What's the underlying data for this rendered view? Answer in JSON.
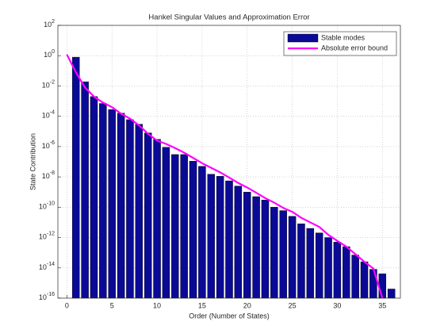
{
  "chart_data": {
    "type": "bar-line",
    "title": "Hankel Singular Values and Approximation Error",
    "xlabel": "Order (Number of States)",
    "ylabel": "State Contribution",
    "log_y": true,
    "grid": true,
    "legend": "northeast",
    "xlim": [
      -1,
      37
    ],
    "xticks": [
      0,
      5,
      10,
      15,
      20,
      25,
      30,
      35
    ],
    "ylim": [
      1e-16,
      100
    ],
    "yticks": [
      {
        "value": 100,
        "label": "10",
        "exponent": "2"
      },
      {
        "value": 1,
        "label": "10",
        "exponent": "0"
      },
      {
        "value": 0.01,
        "label": "10",
        "exponent": "-2"
      },
      {
        "value": 0.0001,
        "label": "10",
        "exponent": "-4"
      },
      {
        "value": 1e-06,
        "label": "10",
        "exponent": "-6"
      },
      {
        "value": 1e-08,
        "label": "10",
        "exponent": "-8"
      },
      {
        "value": 1e-10,
        "label": "10",
        "exponent": "-10"
      },
      {
        "value": 1e-12,
        "label": "10",
        "exponent": "-12"
      },
      {
        "value": 1e-14,
        "label": "10",
        "exponent": "-14"
      },
      {
        "value": 1e-16,
        "label": "10",
        "exponent": "-16"
      }
    ],
    "series": [
      {
        "name": "Stable modes",
        "kind": "bar",
        "color": "#0a0a96",
        "x": [
          1,
          2,
          3,
          4,
          5,
          6,
          7,
          8,
          9,
          10,
          11,
          12,
          13,
          14,
          15,
          16,
          17,
          18,
          19,
          20,
          21,
          22,
          23,
          24,
          25,
          26,
          27,
          28,
          29,
          30,
          31,
          32,
          33,
          34,
          35,
          36
        ],
        "values": [
          0.8,
          0.019,
          0.002,
          0.0007,
          0.00028,
          0.00016,
          6e-05,
          3e-05,
          8e-06,
          3e-06,
          9e-07,
          3e-07,
          3e-07,
          1.1e-07,
          5e-08,
          1.5e-08,
          1.1e-08,
          5.5e-09,
          2.5e-09,
          1e-09,
          5e-10,
          3e-10,
          1e-10,
          6e-11,
          2.5e-11,
          8e-12,
          4e-12,
          2e-12,
          1e-12,
          5e-13,
          2.5e-13,
          7e-14,
          2.5e-14,
          8e-15,
          4e-15,
          4e-16
        ]
      },
      {
        "name": "Absolute error bound",
        "kind": "line",
        "color": "#ff00ff",
        "x": [
          0,
          1,
          2,
          3,
          4,
          5,
          6,
          7,
          8,
          9,
          10,
          11,
          12,
          13,
          14,
          15,
          16,
          17,
          18,
          19,
          20,
          21,
          22,
          23,
          24,
          25,
          26,
          27,
          28,
          29,
          30,
          31,
          32,
          33,
          34,
          35
        ],
        "values": [
          1.2,
          0.08,
          0.008,
          0.002,
          0.0008,
          0.0004,
          0.00015,
          7e-05,
          2.5e-05,
          7e-06,
          2.5e-06,
          1.5e-06,
          8e-07,
          4e-07,
          1.8e-07,
          8e-08,
          4e-08,
          2e-08,
          9e-09,
          4e-09,
          2e-09,
          9e-10,
          4e-10,
          2e-10,
          9e-11,
          5e-11,
          2e-11,
          1e-11,
          5e-12,
          1.5e-12,
          6e-13,
          2.5e-13,
          8e-14,
          2.5e-14,
          9e-15,
          1e-16
        ]
      }
    ]
  }
}
